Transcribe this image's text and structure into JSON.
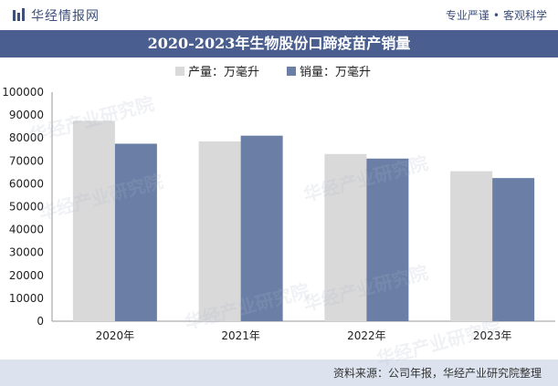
{
  "header": {
    "brand": "华经情报网",
    "slogan_left": "专业严谨",
    "slogan_right": "客观科学"
  },
  "title": "2020-2023年生物股份口蹄疫苗产销量",
  "footer": {
    "source": "资料来源：公司年报，华经产业研究院整理"
  },
  "watermark": "华经产业研究院",
  "chart_data": {
    "type": "bar",
    "categories": [
      "2020年",
      "2021年",
      "2022年",
      "2023年"
    ],
    "series": [
      {
        "name": "产量：万毫升",
        "values": [
          87500,
          78500,
          73000,
          65500
        ],
        "color": "#d9d9d9"
      },
      {
        "name": "销量：万毫升",
        "values": [
          77500,
          81000,
          71000,
          62500
        ],
        "color": "#6b7fa6"
      }
    ],
    "ylim": [
      0,
      100000
    ],
    "yticks": [
      "0",
      "10000",
      "20000",
      "30000",
      "40000",
      "50000",
      "60000",
      "70000",
      "80000",
      "90000",
      "100000"
    ],
    "grid": false,
    "legend": "top-center"
  }
}
